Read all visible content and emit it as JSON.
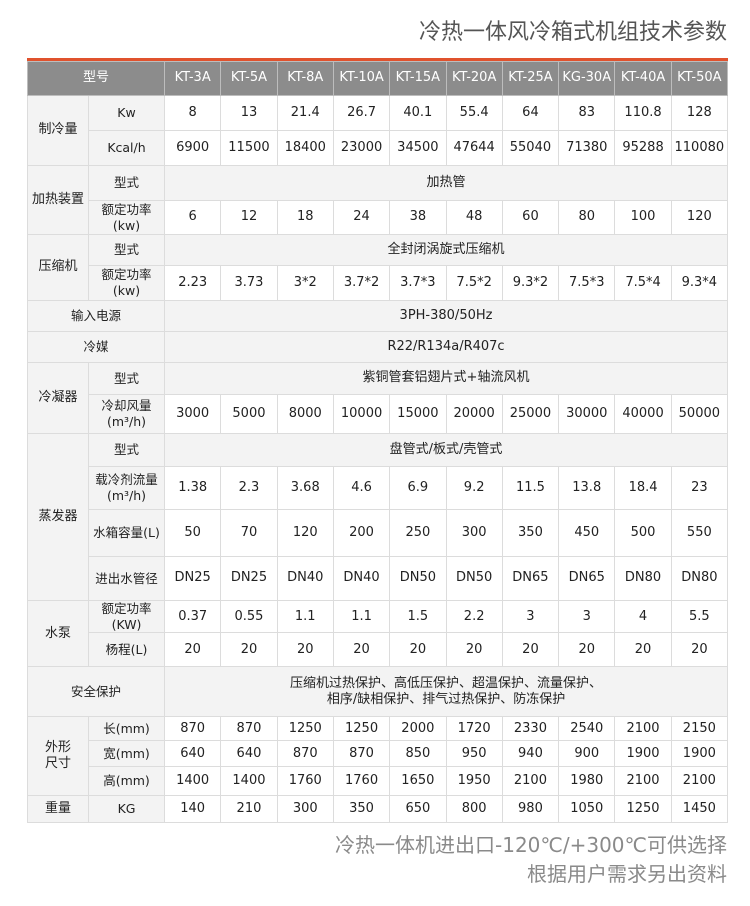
{
  "title": "冷热一体风冷箱式机组技术参数",
  "header": {
    "label": "型号",
    "models": [
      "KT-3A",
      "KT-5A",
      "KT-8A",
      "KT-10A",
      "KT-15A",
      "KT-20A",
      "KT-25A",
      "KG-30A",
      "KT-40A",
      "KT-50A"
    ]
  },
  "rows": [
    {
      "group": "制冷量",
      "group_span": 2,
      "label": "Kw",
      "values": [
        "8",
        "13",
        "21.4",
        "26.7",
        "40.1",
        "55.4",
        "64",
        "83",
        "110.8",
        "128"
      ]
    },
    {
      "label": "Kcal/h",
      "values": [
        "6900",
        "11500",
        "18400",
        "23000",
        "34500",
        "47644",
        "55040",
        "71380",
        "95288",
        "110080"
      ]
    },
    {
      "group": "加热装置",
      "group_span": 2,
      "label": "型式",
      "span_value": "加热管"
    },
    {
      "label": "额定功率(kw)",
      "values": [
        "6",
        "12",
        "18",
        "24",
        "38",
        "48",
        "60",
        "80",
        "100",
        "120"
      ]
    },
    {
      "group": "压缩机",
      "group_span": 2,
      "label": "型式",
      "span_value": "全封闭涡旋式压缩机"
    },
    {
      "label": "额定功率(kw)",
      "values": [
        "2.23",
        "3.73",
        "3*2",
        "3.7*2",
        "3.7*3",
        "7.5*2",
        "9.3*2",
        "7.5*3",
        "7.5*4",
        "9.3*4"
      ]
    },
    {
      "merged_label": "输入电源",
      "span_value": "3PH-380/50Hz"
    },
    {
      "merged_label": "冷媒",
      "span_value": "R22/R134a/R407c"
    },
    {
      "group": "冷凝器",
      "group_span": 2,
      "label": "型式",
      "span_value": "紫铜管套铝翅片式+轴流风机"
    },
    {
      "label": "冷却风量(m³/h)",
      "values": [
        "3000",
        "5000",
        "8000",
        "10000",
        "15000",
        "20000",
        "25000",
        "30000",
        "40000",
        "50000"
      ]
    },
    {
      "group": "蒸发器",
      "group_span": 4,
      "label": "型式",
      "span_value": "盘管式/板式/壳管式"
    },
    {
      "label": "载冷剂流量(m³/h)",
      "values": [
        "1.38",
        "2.3",
        "3.68",
        "4.6",
        "6.9",
        "9.2",
        "11.5",
        "13.8",
        "18.4",
        "23"
      ]
    },
    {
      "label": "水箱容量(L)",
      "values": [
        "50",
        "70",
        "120",
        "200",
        "250",
        "300",
        "350",
        "450",
        "500",
        "550"
      ]
    },
    {
      "label": "进出水管径",
      "values": [
        "DN25",
        "DN25",
        "DN40",
        "DN40",
        "DN50",
        "DN50",
        "DN65",
        "DN65",
        "DN80",
        "DN80"
      ]
    },
    {
      "group": "水泵",
      "group_span": 2,
      "label": "额定功率(KW)",
      "values": [
        "0.37",
        "0.55",
        "1.1",
        "1.1",
        "1.5",
        "2.2",
        "3",
        "3",
        "4",
        "5.5"
      ]
    },
    {
      "label": "杨程(L)",
      "values": [
        "20",
        "20",
        "20",
        "20",
        "20",
        "20",
        "20",
        "20",
        "20",
        "20"
      ]
    },
    {
      "merged_label": "安全保护",
      "span_value": "压缩机过热保护、高低压保护、超温保护、流量保护、\n相序/缺相保护、排气过热保护、防冻保护"
    },
    {
      "group": "外形\n尺寸",
      "group_span": 3,
      "label": "长(mm)",
      "values": [
        "870",
        "870",
        "1250",
        "1250",
        "2000",
        "1720",
        "2330",
        "2540",
        "2100",
        "2150"
      ]
    },
    {
      "label": "宽(mm)",
      "values": [
        "640",
        "640",
        "870",
        "870",
        "850",
        "950",
        "940",
        "900",
        "1900",
        "1900"
      ]
    },
    {
      "label": "高(mm)",
      "values": [
        "1400",
        "1400",
        "1760",
        "1760",
        "1650",
        "1950",
        "2100",
        "1980",
        "2100",
        "2100"
      ]
    },
    {
      "group": "重量",
      "group_span": 1,
      "label": "KG",
      "values": [
        "140",
        "210",
        "300",
        "350",
        "650",
        "800",
        "980",
        "1050",
        "1250",
        "1450"
      ]
    }
  ],
  "footer": [
    "冷热一体机进出口-120℃/+300℃可供选择",
    "根据用户需求另出资料"
  ],
  "colors": {
    "accent": "#e0522d",
    "header_bg": "#8c8c8c",
    "label_bg": "#f3f3f3"
  }
}
